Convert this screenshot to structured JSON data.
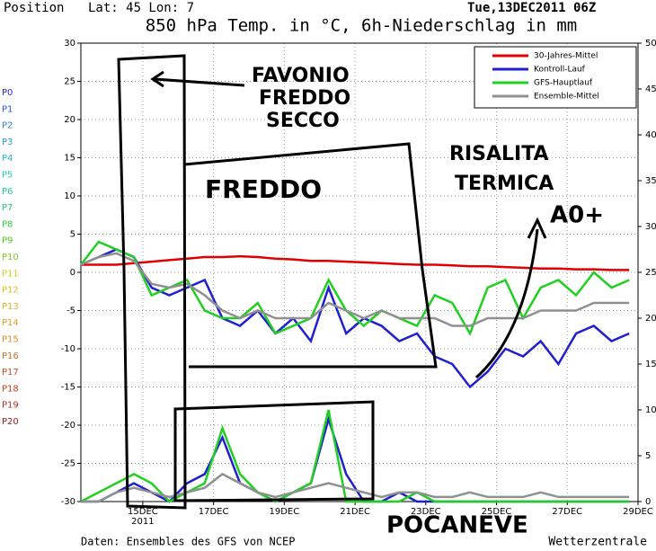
{
  "chart_data": {
    "type": "line",
    "header": {
      "position": "Position",
      "location": "Lat: 45 Lon: 7",
      "run": "Tue,13DEC2011 06Z"
    },
    "title": "850 hPa Temp. in °C, 6h-Niederschlag in mm",
    "footer_left": "Daten: Ensembles des GFS von NCEP",
    "footer_right": "Wetterzentrale",
    "x": [
      13.25,
      13.75,
      14.25,
      14.75,
      15.25,
      15.75,
      16.25,
      16.75,
      17.25,
      17.75,
      18.25,
      18.75,
      19.25,
      19.75,
      20.25,
      20.75,
      21.25,
      21.75,
      22.25,
      22.75,
      23.25,
      23.75,
      24.25,
      24.75,
      25.25,
      25.75,
      26.25,
      26.75,
      27.25,
      27.75,
      28.25,
      28.75
    ],
    "xlim": [
      13.25,
      29
    ],
    "xticks": [
      {
        "value": 15,
        "label": "15DEC"
      },
      {
        "value": 17,
        "label": "17DEC"
      },
      {
        "value": 19,
        "label": "19DEC"
      },
      {
        "value": 21,
        "label": "21DEC"
      },
      {
        "value": 23,
        "label": "23DEC"
      },
      {
        "value": 25,
        "label": "25DEC"
      },
      {
        "value": 27,
        "label": "27DEC"
      },
      {
        "value": 29,
        "label": "29DEC"
      }
    ],
    "x_year": "2011",
    "ylim": [
      -30,
      30
    ],
    "yticks": [
      -30,
      -25,
      -20,
      -15,
      -10,
      -5,
      0,
      5,
      10,
      15,
      20,
      25,
      30
    ],
    "y2lim": [
      0,
      50
    ],
    "y2ticks": [
      0,
      5,
      10,
      15,
      20,
      25,
      30,
      35,
      40,
      45,
      50
    ],
    "grid": true,
    "legend": "upper right",
    "series": [
      {
        "name": "30-Jahres-Mittel",
        "color": "#e00000",
        "values": [
          1,
          1,
          1,
          1.2,
          1.4,
          1.6,
          1.8,
          2,
          2,
          2.1,
          2,
          1.8,
          1.7,
          1.5,
          1.5,
          1.4,
          1.3,
          1.2,
          1.1,
          1,
          1,
          0.9,
          0.8,
          0.8,
          0.7,
          0.6,
          0.5,
          0.5,
          0.4,
          0.4,
          0.3,
          0.3
        ]
      },
      {
        "name": "Kontroll-Lauf",
        "color": "#2020d0",
        "values": [
          1,
          2,
          3,
          2,
          -2,
          -3,
          -2,
          -1,
          -6,
          -7,
          -5,
          -8,
          -6,
          -9,
          -2,
          -8,
          -6,
          -7,
          -9,
          -8,
          -11,
          -12,
          -15,
          -13,
          -10,
          -11,
          -9,
          -12,
          -8,
          -7,
          -9,
          -8
        ],
        "precip": [
          0,
          0,
          1,
          2,
          1,
          0,
          2,
          3,
          7,
          2,
          1,
          0,
          1,
          2,
          9,
          3,
          0,
          0,
          1,
          0,
          0,
          0,
          0,
          0,
          0,
          0,
          0,
          0,
          0,
          0,
          0,
          0
        ]
      },
      {
        "name": "GFS-Hauptlauf",
        "color": "#20d020",
        "values": [
          1,
          4,
          3,
          2,
          -3,
          -2,
          -1,
          -5,
          -6,
          -6,
          -4,
          -8,
          -7,
          -6,
          -1,
          -5,
          -7,
          -5,
          -6,
          -7,
          -3,
          -4,
          -8,
          -2,
          -1,
          -6,
          -2,
          -1,
          -3,
          0,
          -2,
          -1
        ],
        "precip": [
          0,
          1,
          2,
          3,
          2,
          0,
          1,
          2,
          8,
          3,
          1,
          0,
          1,
          2,
          10,
          0,
          0,
          0,
          0,
          1,
          0,
          0,
          0,
          0,
          0,
          0,
          0,
          0,
          0,
          0,
          0,
          0
        ]
      },
      {
        "name": "Ensemble-Mittel",
        "color": "#909090",
        "values": [
          1,
          2,
          2.5,
          1.5,
          -1.5,
          -2,
          -1.5,
          -3,
          -5,
          -6,
          -5,
          -6,
          -6,
          -6,
          -4,
          -5,
          -6,
          -5,
          -6,
          -6,
          -6,
          -7,
          -7,
          -6,
          -6,
          -6,
          -5,
          -5,
          -5,
          -4,
          -4,
          -4
        ],
        "precip": [
          0,
          0,
          1,
          1.5,
          1,
          0.5,
          1,
          1.5,
          3,
          2,
          1,
          0.5,
          1,
          1.5,
          2,
          1.5,
          1,
          0.5,
          1,
          1,
          0.5,
          0.5,
          1,
          0.5,
          0.5,
          0.5,
          1,
          0.5,
          0.5,
          0.5,
          0.5,
          0.5
        ]
      }
    ],
    "members": [
      {
        "name": "P0",
        "color": "#2a2ad0"
      },
      {
        "name": "P1",
        "color": "#2a55d0"
      },
      {
        "name": "P2",
        "color": "#2a80d0"
      },
      {
        "name": "P3",
        "color": "#2aa0d0"
      },
      {
        "name": "P4",
        "color": "#20b8d0"
      },
      {
        "name": "P5",
        "color": "#20c8c0"
      },
      {
        "name": "P6",
        "color": "#20c8a0"
      },
      {
        "name": "P7",
        "color": "#20c870"
      },
      {
        "name": "P8",
        "color": "#30c840"
      },
      {
        "name": "P9",
        "color": "#50c820"
      },
      {
        "name": "P10",
        "color": "#80c820"
      },
      {
        "name": "P11",
        "color": "#d0d020"
      },
      {
        "name": "P12",
        "color": "#e0c020"
      },
      {
        "name": "P13",
        "color": "#e0b020"
      },
      {
        "name": "P14",
        "color": "#e0a020"
      },
      {
        "name": "P15",
        "color": "#e08a20"
      },
      {
        "name": "P16",
        "color": "#d07020"
      },
      {
        "name": "P17",
        "color": "#c85020"
      },
      {
        "name": "P18",
        "color": "#c03a20"
      },
      {
        "name": "P19",
        "color": "#b02a20"
      },
      {
        "name": "P20",
        "color": "#a02020"
      }
    ],
    "annotations": {
      "favonio": [
        "FAVONIO",
        "FREDDO",
        "SECCO"
      ],
      "freddo": "FREDDO",
      "risalita": [
        "RISALITA",
        "TERMICA"
      ],
      "aot": "A0+",
      "pocaneve": "POCANEVE"
    }
  }
}
